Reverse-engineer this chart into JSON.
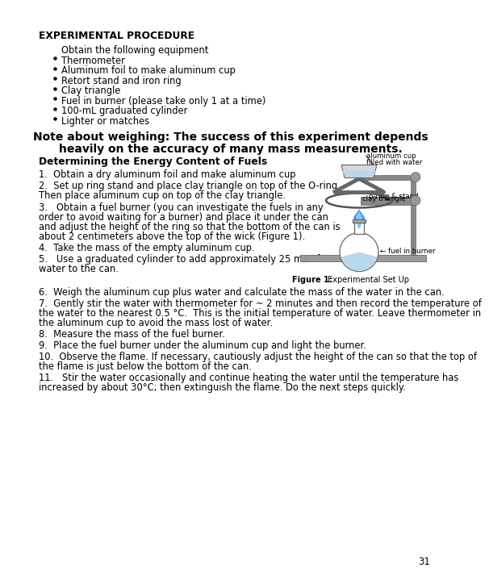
{
  "page_background": "#ffffff",
  "page_number": "31",
  "title_bold": "EXPERIMENTAL PROCEDURE",
  "equipment_intro": "Obtain the following equipment",
  "bullets": [
    "Thermometer",
    "Aluminum foil to make aluminum cup",
    "Retort stand and iron ring",
    "Clay triangle",
    "Fuel in burner (please take only 1 at a time)",
    "100-mL graduated cylinder",
    "Lighter or matches"
  ],
  "note_line1": "Note about weighing: The success of this experiment depends",
  "note_line2": "heavily on the accuracy of many mass measurements.",
  "section_title": "Determining the Energy Content of Fuels",
  "step1": "1.  Obtain a dry aluminum foil and make aluminum cup",
  "step2a": "2.  Set up ring stand and place clay triangle on top of the O-ring.",
  "step2b": "Then place aluminum cup on top of the clay triangle.",
  "step3a": "3.   Obtain a fuel burner (you can investigate the fuels in any",
  "step3b": "order to avoid waiting for a burner) and place it under the can",
  "step3c": "and adjust the height of the ring so that the bottom of the can is",
  "step3d": "about 2 centimeters above the top of the wick (Figure 1).",
  "step4": "4.  Take the mass of the empty aluminum cup.",
  "step5a": "5.   Use a graduated cylinder to add approximately 25 mL of",
  "step5b": "water to the can.",
  "step6": "6.  Weigh the aluminum cup plus water and calculate the mass of the water in the can.",
  "step7a": "7.  Gently stir the water with thermometer for ~ 2 minutes and then record the temperature of",
  "step7b": "the water to the nearest 0.5 °C.  This is the initial temperature of water. Leave thermometer in",
  "step7c": "the aluminum cup to avoid the mass lost of water.",
  "step8": "8.  Measure the mass of the fuel burner.",
  "step9": "9.  Place the fuel burner under the aluminum cup and light the burner.",
  "step10a": "10.  Observe the flame. If necessary, cautiously adjust the height of the can so that the top of",
  "step10b": "the flame is just below the bottom of the can.",
  "step11a": "11.   Stir the water occasionally and continue heating the water until the temperature has",
  "step11b": "increased by about 30°C; then extinguish the flame. Do the next steps quickly.",
  "fig_caption_bold": "Figure 1:",
  "fig_caption_normal": " Experimental Set Up",
  "label_cup": "aluminum cup",
  "label_cup2": "filled with water",
  "label_oring": "o-ring & stand",
  "label_clay": "clay triangle",
  "label_fuel": "fuel in burner"
}
